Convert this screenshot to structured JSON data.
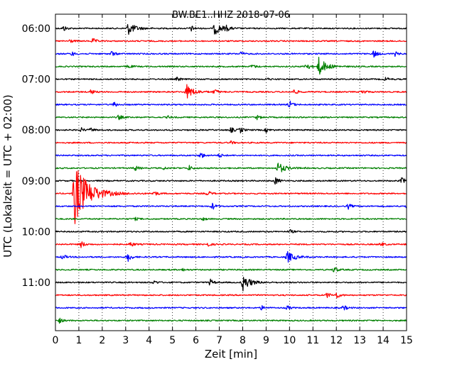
{
  "chart_data": {
    "type": "line",
    "title": "BW.BE1..HHZ 2018-07-06",
    "xlabel": "Zeit  [min]",
    "ylabel": "UTC (Lokalzeit = UTC + 02:00)",
    "xlim": [
      0,
      15
    ],
    "x_ticks": [
      "0",
      "1",
      "2",
      "3",
      "4",
      "5",
      "6",
      "7",
      "8",
      "9",
      "10",
      "11",
      "12",
      "13",
      "14",
      "15"
    ],
    "y_ticks": [
      {
        "label": "06:00",
        "trace": 0
      },
      {
        "label": "07:00",
        "trace": 4
      },
      {
        "label": "08:00",
        "trace": 8
      },
      {
        "label": "09:00",
        "trace": 12
      },
      {
        "label": "10:00",
        "trace": 16
      },
      {
        "label": "11:00",
        "trace": 20
      }
    ],
    "grid": "vertical dotted at every minute",
    "colors": [
      "#000000",
      "#ff0000",
      "#0000ff",
      "#008000"
    ],
    "traces": [
      {
        "start": "06:00",
        "color": "#000000",
        "events": [
          {
            "t": 0.35,
            "amp": 4
          },
          {
            "t": 3.1,
            "amp": 9
          },
          {
            "t": 5.8,
            "amp": 4
          },
          {
            "t": 6.8,
            "amp": 9
          },
          {
            "t": 7.3,
            "amp": 3
          }
        ]
      },
      {
        "start": "06:15",
        "color": "#ff0000",
        "events": [
          {
            "t": 0.6,
            "amp": 3
          },
          {
            "t": 1.6,
            "amp": 4
          }
        ]
      },
      {
        "start": "06:30",
        "color": "#0000ff",
        "events": [
          {
            "t": 0.7,
            "amp": 3
          },
          {
            "t": 2.4,
            "amp": 4
          },
          {
            "t": 7.9,
            "amp": 3
          },
          {
            "t": 13.6,
            "amp": 6
          },
          {
            "t": 14.5,
            "amp": 3
          }
        ]
      },
      {
        "start": "06:45",
        "color": "#008000",
        "events": [
          {
            "t": 3.1,
            "amp": 3
          },
          {
            "t": 8.4,
            "amp": 3
          },
          {
            "t": 10.7,
            "amp": 7
          },
          {
            "t": 11.25,
            "amp": 13
          }
        ]
      },
      {
        "start": "07:00",
        "color": "#000000",
        "events": [
          {
            "t": 5.2,
            "amp": 3
          },
          {
            "t": 9.0,
            "amp": 2
          },
          {
            "t": 14.1,
            "amp": 3
          }
        ]
      },
      {
        "start": "07:15",
        "color": "#ff0000",
        "events": [
          {
            "t": 1.5,
            "amp": 4
          },
          {
            "t": 5.6,
            "amp": 10
          },
          {
            "t": 6.8,
            "amp": 4
          },
          {
            "t": 10.2,
            "amp": 4
          },
          {
            "t": 13.1,
            "amp": 4
          }
        ]
      },
      {
        "start": "07:30",
        "color": "#0000ff",
        "events": [
          {
            "t": 2.5,
            "amp": 4
          },
          {
            "t": 10.0,
            "amp": 6
          }
        ]
      },
      {
        "start": "07:45",
        "color": "#008000",
        "events": [
          {
            "t": 2.7,
            "amp": 4
          },
          {
            "t": 4.8,
            "amp": 2
          },
          {
            "t": 8.6,
            "amp": 3
          }
        ]
      },
      {
        "start": "08:00",
        "color": "#000000",
        "events": [
          {
            "t": 1.1,
            "amp": 3
          },
          {
            "t": 1.5,
            "amp": 3
          },
          {
            "t": 7.5,
            "amp": 4
          },
          {
            "t": 7.9,
            "amp": 4
          },
          {
            "t": 9.0,
            "amp": 3
          }
        ]
      },
      {
        "start": "08:15",
        "color": "#ff0000",
        "events": [
          {
            "t": 7.5,
            "amp": 2
          }
        ]
      },
      {
        "start": "08:30",
        "color": "#0000ff",
        "events": [
          {
            "t": 6.2,
            "amp": 5
          },
          {
            "t": 7.0,
            "amp": 3
          }
        ]
      },
      {
        "start": "08:45",
        "color": "#008000",
        "events": [
          {
            "t": 3.4,
            "amp": 4
          },
          {
            "t": 4.6,
            "amp": 2
          },
          {
            "t": 5.7,
            "amp": 4
          },
          {
            "t": 9.5,
            "amp": 8
          }
        ]
      },
      {
        "start": "09:00",
        "color": "#000000",
        "events": [
          {
            "t": 9.4,
            "amp": 6
          },
          {
            "t": 14.8,
            "amp": 5
          }
        ]
      },
      {
        "start": "09:15",
        "color": "#ff0000",
        "events": [
          {
            "t": 0.8,
            "amp": 45
          },
          {
            "t": 4.2,
            "amp": 4
          },
          {
            "t": 6.5,
            "amp": 4
          }
        ]
      },
      {
        "start": "09:30",
        "color": "#0000ff",
        "events": [
          {
            "t": 6.7,
            "amp": 5
          },
          {
            "t": 12.5,
            "amp": 4
          },
          {
            "t": 15.0,
            "amp": 4
          }
        ]
      },
      {
        "start": "09:45",
        "color": "#008000",
        "events": [
          {
            "t": 3.4,
            "amp": 2
          },
          {
            "t": 6.3,
            "amp": 2
          }
        ]
      },
      {
        "start": "10:00",
        "color": "#000000",
        "events": [
          {
            "t": 10.0,
            "amp": 3
          }
        ]
      },
      {
        "start": "10:15",
        "color": "#ff0000",
        "events": [
          {
            "t": 1.1,
            "amp": 5
          },
          {
            "t": 3.2,
            "amp": 4
          },
          {
            "t": 6.5,
            "amp": 3
          },
          {
            "t": 13.9,
            "amp": 3
          }
        ]
      },
      {
        "start": "10:30",
        "color": "#0000ff",
        "events": [
          {
            "t": 0.3,
            "amp": 4
          },
          {
            "t": 3.1,
            "amp": 7
          },
          {
            "t": 9.9,
            "amp": 8
          }
        ]
      },
      {
        "start": "10:45",
        "color": "#008000",
        "events": [
          {
            "t": 5.4,
            "amp": 2
          },
          {
            "t": 11.9,
            "amp": 5
          }
        ]
      },
      {
        "start": "11:00",
        "color": "#000000",
        "events": [
          {
            "t": 4.2,
            "amp": 3
          },
          {
            "t": 6.6,
            "amp": 5
          },
          {
            "t": 8.0,
            "amp": 12
          }
        ]
      },
      {
        "start": "11:15",
        "color": "#ff0000",
        "events": [
          {
            "t": 11.6,
            "amp": 4
          },
          {
            "t": 12.0,
            "amp": 5
          }
        ]
      },
      {
        "start": "11:30",
        "color": "#0000ff",
        "events": [
          {
            "t": 8.8,
            "amp": 3
          },
          {
            "t": 9.9,
            "amp": 3
          },
          {
            "t": 12.3,
            "amp": 4
          }
        ]
      },
      {
        "start": "11:45",
        "color": "#008000",
        "events": [
          {
            "t": 0.15,
            "amp": 4
          }
        ]
      }
    ]
  }
}
